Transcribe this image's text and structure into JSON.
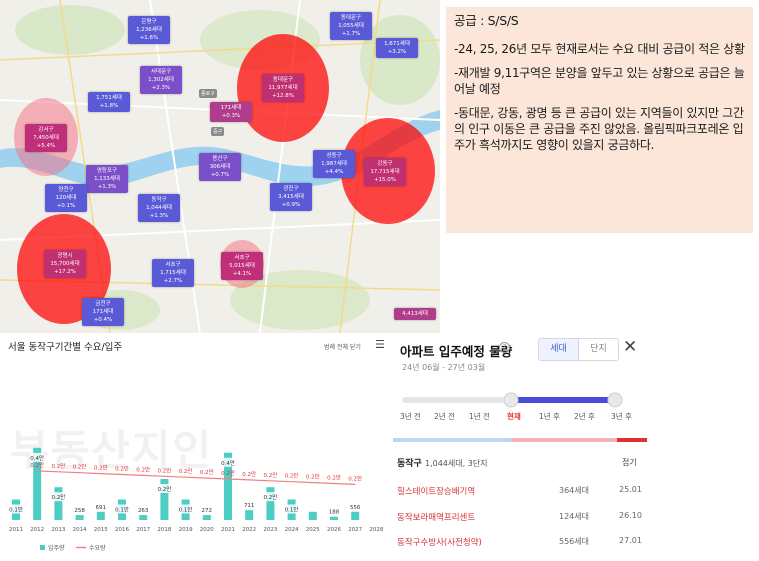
{
  "map": {
    "pins": [
      {
        "name": "은평구",
        "count": "1,236세대",
        "pct": "+1.6%",
        "color": "#5a5ad6"
      },
      {
        "name": "동대문구",
        "count": "1,055세대",
        "pct": "+1.7%",
        "color": "#5a5ad6"
      },
      {
        "name": "",
        "count": "1,671세대",
        "pct": "+3.2%",
        "color": "#5a5ad6"
      },
      {
        "name": "서대문구",
        "count": "1,302세대",
        "pct": "+2.3%",
        "color": "#7a4fc8"
      },
      {
        "name": "",
        "count": "1,751세대",
        "pct": "+1.8%",
        "color": "#5a5ad6"
      },
      {
        "name": "동대문구",
        "count": "11,977세대",
        "pct": "+12.8%",
        "color": "#c03070"
      },
      {
        "name": "",
        "count": "171세대",
        "pct": "+0.3%",
        "color": "#b03c8c"
      },
      {
        "name": "강서구",
        "count": "7,450세대",
        "pct": "+5.4%",
        "color": "#c0307a"
      },
      {
        "name": "용산구",
        "count": "306세대",
        "pct": "+0.7%",
        "color": "#7a4fc8"
      },
      {
        "name": "성동구",
        "count": "1,987세대",
        "pct": "+4.4%",
        "color": "#5a5ad6"
      },
      {
        "name": "강동구",
        "count": "17,715세대",
        "pct": "+15.0%",
        "color": "#c03070"
      },
      {
        "name": "영등포구",
        "count": "1,133세대",
        "pct": "+1.3%",
        "color": "#7a4fc8"
      },
      {
        "name": "양천구",
        "count": "120세대",
        "pct": "+0.1%",
        "color": "#5a5ad6"
      },
      {
        "name": "광진구",
        "count": "3,415세대",
        "pct": "+0.9%",
        "color": "#5a5ad6"
      },
      {
        "name": "동작구",
        "count": "1,044세대",
        "pct": "+1.3%",
        "color": "#5a5ad6"
      },
      {
        "name": "광명시",
        "count": "15,700세대",
        "pct": "+17.2%",
        "color": "#c03070"
      },
      {
        "name": "서초구",
        "count": "1,715세대",
        "pct": "+2.7%",
        "color": "#5a5ad6"
      },
      {
        "name": "서초구",
        "count": "5,015세대",
        "pct": "+4.1%",
        "color": "#c0307a"
      },
      {
        "name": "금천구",
        "count": "171세대",
        "pct": "+0.4%",
        "color": "#5a5ad6"
      },
      {
        "name": "",
        "count": "4,413세대",
        "pct": "",
        "color": "#b03c8c"
      }
    ],
    "tags": [
      "종로구",
      "중구"
    ]
  },
  "note": {
    "title": "공급 : S/S/S",
    "items": [
      "-24, 25, 26년 모두 현재로서는 수요 대비 공급이 적은 상황",
      "-재개발 9,11구역은 분양을 앞두고 있는 상황으로 공급은 늘어날 예정",
      "-동대문, 강동, 광명 등 큰 공급이 있는 지역들이 있지만 그간의 인구 이동은 큰 공급을 주진 않았음. 올림픽파크포레온 입주가 흑석까지도 영향이 있을지 궁금하다."
    ]
  },
  "chart_panel": {
    "title": "서울 동작구기간별 수요/입주",
    "open_label": "범례 전체 닫기",
    "menu_icon": "menu-icon",
    "watermark": "부동산지인",
    "legend": [
      "입주량",
      "수요량"
    ]
  },
  "chart_data": {
    "type": "bar",
    "categories": [
      "2011",
      "2012",
      "2013",
      "2014",
      "2015",
      "2016",
      "2017",
      "2018",
      "2019",
      "2020",
      "2021",
      "2022",
      "2023",
      "2024",
      "2025",
      "2026",
      "2027",
      "2028"
    ],
    "series": [
      {
        "name": "입주량",
        "type": "bar",
        "color": "#4ecdc4",
        "values": [
          0.1,
          0.4,
          0.2,
          258,
          691,
          0.1,
          263,
          0.2,
          0.1,
          272,
          0.4,
          711,
          0.2,
          0.1,
          364,
          188,
          556,
          null
        ],
        "labels": [
          "0.1만",
          "0.4만",
          "0.2만",
          "258",
          "691",
          "0.1만",
          "263",
          "0.2만",
          "0.1만",
          "272",
          "0.4만",
          "711",
          "0.2만",
          "0.1만",
          "",
          "188",
          "556",
          ""
        ]
      },
      {
        "name": "수요량",
        "type": "line",
        "color": "#f08080",
        "values": [
          null,
          0.2,
          0.2,
          0.2,
          0.2,
          0.2,
          0.2,
          0.2,
          0.2,
          0.2,
          0.2,
          0.2,
          0.2,
          0.2,
          0.2,
          0.2,
          0.2,
          null
        ],
        "labels": [
          "",
          "0.2만",
          "0.2만",
          "0.2만",
          "0.2만",
          "0.2만",
          "0.2만",
          "0.2만",
          "0.2만",
          "0.2만",
          "0.2만",
          "0.2만",
          "0.2만",
          "0.2만",
          "0.2만",
          "0.2만",
          "0.2만",
          ""
        ]
      }
    ],
    "bar_heights_relative": [
      0.25,
      0.88,
      0.4,
      0.06,
      0.1,
      0.25,
      0.06,
      0.5,
      0.25,
      0.06,
      0.82,
      0.12,
      0.4,
      0.25,
      0.1,
      0.04,
      0.1,
      0
    ],
    "grid": false
  },
  "supply": {
    "title": "아파트 입주예정 물량",
    "info_icon": "question-icon",
    "period": "24년 06월 - 27년 03월",
    "seg_unit": "세대",
    "seg_complex": "단지",
    "close_icon": "close-icon",
    "ticks": [
      "3년 전",
      "2년 전",
      "1년 전",
      "현재",
      "1년 후",
      "2년 후",
      "3년 후"
    ],
    "district": "동작구",
    "district_sub": "1,044세대, 3단지",
    "collapse": "접기",
    "rows": [
      {
        "name": "힐스테이트장승배기역",
        "count": "364세대",
        "date": "25.01"
      },
      {
        "name": "동작보라매역프리센트",
        "count": "124세대",
        "date": "26.10"
      },
      {
        "name": "동작구수방사(사전청약)",
        "count": "556세대",
        "date": "27.01"
      }
    ]
  }
}
